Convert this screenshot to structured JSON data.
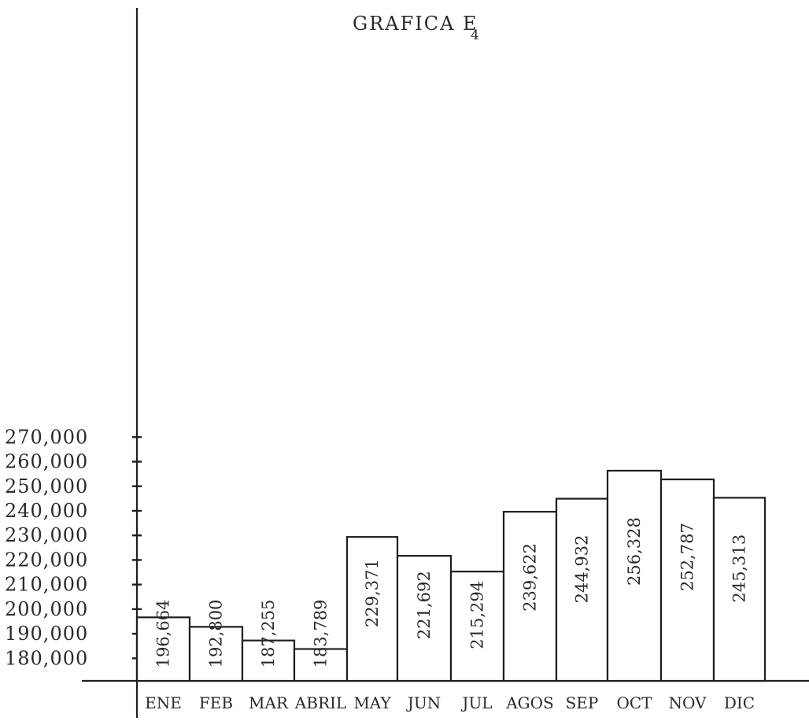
{
  "chart_data": {
    "type": "bar",
    "title": "GRAFICA E",
    "title_subscript": "4",
    "xlabel": "",
    "ylabel": "",
    "categories": [
      "ENE",
      "FEB",
      "MAR",
      "ABRIL",
      "MAY",
      "JUN",
      "JUL",
      "AGOS",
      "SEP",
      "OCT",
      "NOV",
      "DIC"
    ],
    "values": [
      196664,
      192800,
      187255,
      183789,
      229371,
      221692,
      215294,
      239622,
      244932,
      256328,
      252787,
      245313
    ],
    "value_labels": [
      "196,664",
      "192,800",
      "187,255",
      "183,789",
      "229,371",
      "221,692",
      "215,294",
      "239,622",
      "244,932",
      "256,328",
      "252,787",
      "245,313"
    ],
    "yticks": [
      180000,
      190000,
      200000,
      210000,
      220000,
      230000,
      240000,
      250000,
      260000,
      270000
    ],
    "ytick_labels": [
      "180,000",
      "190,000",
      "200,000",
      "210,000",
      "220,000",
      "230,000",
      "240,000",
      "250,000",
      "260,000",
      "270,000"
    ],
    "ylim": [
      170000,
      270000
    ],
    "grid": false,
    "legend": "none"
  }
}
